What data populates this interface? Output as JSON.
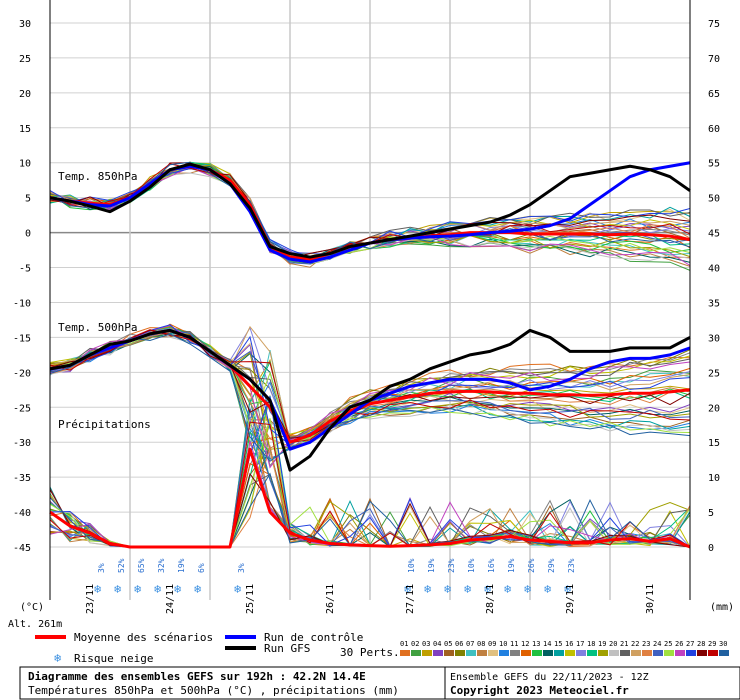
{
  "chart_data": {
    "type": "line",
    "title": "Diagramme des ensembles GEFS sur 192h : 42.2N 14.4E",
    "subtitle": "Températures 850hPa et 500hPa (°C) , précipitations (mm)",
    "run_info": "Ensemble GEFS du 22/11/2023 - 12Z",
    "copyright": "Copyright 2023 Meteociel.fr",
    "xlabels": [
      "23/11",
      "24/11",
      "25/11",
      "26/11",
      "27/11",
      "28/11",
      "29/11",
      "30/11"
    ],
    "left_axis_unit": "(°C)",
    "right_axis_unit": "(mm)",
    "altitude": "Alt. 261m",
    "left_ticks": [
      "30",
      "25",
      "20",
      "15",
      "10",
      "5",
      "0",
      "-5",
      "-10",
      "-15",
      "-20",
      "-25",
      "-30",
      "-35",
      "-40",
      "-45"
    ],
    "right_ticks": [
      "75",
      "70",
      "65",
      "60",
      "55",
      "50",
      "45",
      "40",
      "35",
      "30",
      "25",
      "20",
      "15",
      "10",
      "5",
      "0"
    ],
    "left_range": [
      -45,
      30
    ],
    "right_range": [
      0,
      75
    ],
    "panel_labels": {
      "t850": "Temp. 850hPa",
      "t500": "Temp. 500hPa",
      "precip": "Précipitations"
    },
    "time": [
      0,
      6,
      12,
      18,
      24,
      30,
      36,
      42,
      48,
      54,
      60,
      66,
      72,
      78,
      84,
      90,
      96,
      102,
      108,
      114,
      120,
      126,
      132,
      138,
      144,
      150,
      156,
      162,
      168,
      174,
      180,
      186,
      192
    ],
    "series": [
      {
        "name": "Moyenne des scénarios",
        "color": "#ff0000",
        "kind": "t850",
        "values": [
          5,
          4.5,
          4.2,
          4,
          5,
          7,
          9,
          9.5,
          9,
          7.5,
          4,
          -2,
          -3.5,
          -3.8,
          -3,
          -2,
          -1.5,
          -1,
          -0.8,
          -0.5,
          -0.3,
          0,
          0,
          0,
          -0.2,
          -0.2,
          -0.2,
          -0.2,
          -0.3,
          -0.2,
          -0.3,
          -0.5,
          -1
        ]
      },
      {
        "name": "Run de contrôle",
        "color": "#0000ff",
        "kind": "t850",
        "values": [
          5,
          4.5,
          4,
          3.8,
          5,
          7,
          9,
          9.5,
          9,
          7,
          3,
          -2.5,
          -3.8,
          -4.2,
          -3.5,
          -2.5,
          -1.5,
          -1,
          -0.8,
          -0.6,
          -0.5,
          -0.3,
          0,
          0.2,
          0.5,
          1,
          2,
          4,
          6,
          8,
          9,
          9.5,
          10
        ]
      },
      {
        "name": "Run GFS",
        "color": "#000000",
        "kind": "t850",
        "values": [
          5,
          4.5,
          3.8,
          3,
          4.5,
          6.5,
          9,
          9.8,
          9,
          7,
          3.5,
          -2,
          -3,
          -3.5,
          -3,
          -2,
          -1.5,
          -1,
          -0.5,
          0,
          0.5,
          1,
          1.5,
          2.5,
          4,
          6,
          8,
          8.5,
          9,
          9.5,
          9,
          8,
          6
        ]
      },
      {
        "name": "Moyenne des scénarios",
        "color": "#ff0000",
        "kind": "t500",
        "values": [
          -19.5,
          -19,
          -17.5,
          -16.5,
          -15.5,
          -14.5,
          -14,
          -15,
          -17,
          -19,
          -22,
          -25,
          -30,
          -29,
          -27,
          -25.5,
          -24.5,
          -24,
          -23.5,
          -23,
          -22.8,
          -22.7,
          -22.8,
          -23,
          -23,
          -23.2,
          -23.2,
          -23.3,
          -23.2,
          -23,
          -23,
          -22.8,
          -22.5
        ]
      },
      {
        "name": "Run de contrôle",
        "color": "#0000ff",
        "kind": "t500",
        "values": [
          -19.5,
          -19,
          -17.5,
          -16.5,
          -15.5,
          -14.5,
          -14,
          -15,
          -17,
          -19,
          -21,
          -24,
          -31,
          -30,
          -28,
          -26,
          -24,
          -23,
          -22,
          -21.5,
          -21,
          -21,
          -21,
          -21.5,
          -22.5,
          -22,
          -21,
          -19.5,
          -18.5,
          -18,
          -18,
          -17.5,
          -16.5
        ]
      },
      {
        "name": "Run GFS",
        "color": "#000000",
        "kind": "t500",
        "values": [
          -19.5,
          -19,
          -17.5,
          -16,
          -15.5,
          -14.5,
          -14,
          -15,
          -17,
          -19,
          -21,
          -24,
          -34,
          -32,
          -28,
          -25,
          -24,
          -22,
          -21,
          -19.5,
          -18.5,
          -17.5,
          -17,
          -16,
          -14,
          -15,
          -17,
          -17,
          -17,
          -16.5,
          -16.5,
          -16.5,
          -15
        ]
      },
      {
        "name": "Moyenne des scénarios",
        "color": "#ff0000",
        "kind": "precip",
        "values": [
          5,
          3,
          2,
          0.5,
          0,
          0,
          0,
          0,
          0,
          0,
          14,
          5,
          2,
          1,
          0.5,
          0.3,
          0.2,
          0.1,
          0.2,
          0.3,
          0.5,
          1,
          1.2,
          1.5,
          1,
          0.8,
          0.6,
          0.6,
          1,
          1.2,
          0.8,
          1.2,
          0
        ]
      }
    ],
    "snow_risk_label": "Risque neige",
    "snow_risk": [
      {
        "t": 15,
        "label": "3%"
      },
      {
        "t": 21,
        "label": "52%"
      },
      {
        "t": 27,
        "label": "65%"
      },
      {
        "t": 33,
        "label": "32%"
      },
      {
        "t": 39,
        "label": "19%"
      },
      {
        "t": 45,
        "label": "6%"
      },
      {
        "t": 57,
        "label": "3%"
      },
      {
        "t": 108,
        "label": "10%"
      },
      {
        "t": 114,
        "label": "19%"
      },
      {
        "t": 120,
        "label": "23%"
      },
      {
        "t": 126,
        "label": "10%"
      },
      {
        "t": 132,
        "label": "16%"
      },
      {
        "t": 138,
        "label": "19%"
      },
      {
        "t": 144,
        "label": "26%"
      },
      {
        "t": 150,
        "label": "29%"
      },
      {
        "t": 156,
        "label": "23%"
      }
    ],
    "perturbation_label": "30 Perts.",
    "perturbations": [
      {
        "label": "01",
        "color": "#e07020"
      },
      {
        "label": "02",
        "color": "#40a040"
      },
      {
        "label": "03",
        "color": "#c0a000"
      },
      {
        "label": "04",
        "color": "#8040c0"
      },
      {
        "label": "05",
        "color": "#a06020"
      },
      {
        "label": "06",
        "color": "#808000"
      },
      {
        "label": "07",
        "color": "#40c0c0"
      },
      {
        "label": "08",
        "color": "#c08040"
      },
      {
        "label": "09",
        "color": "#e0c080"
      },
      {
        "label": "10",
        "color": "#2080e0"
      },
      {
        "label": "11",
        "color": "#808080"
      },
      {
        "label": "12",
        "color": "#e06000"
      },
      {
        "label": "13",
        "color": "#20c040"
      },
      {
        "label": "14",
        "color": "#006060"
      },
      {
        "label": "15",
        "color": "#00a0a0"
      },
      {
        "label": "16",
        "color": "#c0c000"
      },
      {
        "label": "17",
        "color": "#8080e0"
      },
      {
        "label": "18",
        "color": "#00c080"
      },
      {
        "label": "19",
        "color": "#a0a000"
      },
      {
        "label": "20",
        "color": "#c0c0c0"
      },
      {
        "label": "21",
        "color": "#606060"
      },
      {
        "label": "22",
        "color": "#d0a060"
      },
      {
        "label": "23",
        "color": "#e08040"
      },
      {
        "label": "24",
        "color": "#4060c0"
      },
      {
        "label": "25",
        "color": "#a0e040"
      },
      {
        "label": "26",
        "color": "#c040c0"
      },
      {
        "label": "27",
        "color": "#2040e0"
      },
      {
        "label": "28",
        "color": "#800000"
      },
      {
        "label": "29",
        "color": "#c00000"
      },
      {
        "label": "30",
        "color": "#2060a0"
      }
    ]
  },
  "legend": {
    "mean": "Moyenne des scénarios",
    "control": "Run de contrôle",
    "gfs": "Run GFS",
    "snow": "Risque neige"
  }
}
